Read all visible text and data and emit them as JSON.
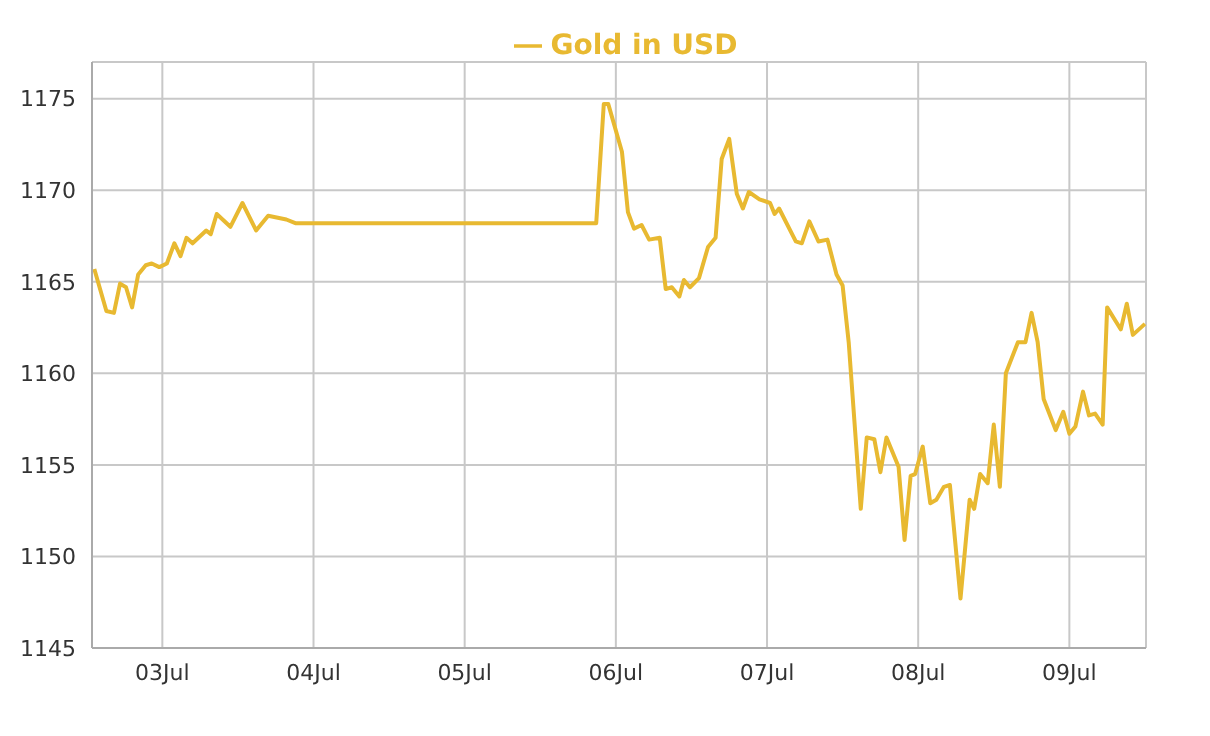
{
  "chart_data": {
    "type": "line",
    "legend": "top",
    "grid": true,
    "marker": "none",
    "line_style": "solid",
    "xlim": [
      "--07-02T12:50",
      "--07-09T12:10"
    ],
    "xticks": [
      {
        "value": "--07-03",
        "label": "03Jul"
      },
      {
        "value": "--07-04",
        "label": "04Jul"
      },
      {
        "value": "--07-05",
        "label": "05Jul"
      },
      {
        "value": "--07-06",
        "label": "06Jul"
      },
      {
        "value": "--07-07",
        "label": "07Jul"
      },
      {
        "value": "--07-08",
        "label": "08Jul"
      },
      {
        "value": "--07-09",
        "label": "09Jul"
      }
    ],
    "ylim": [
      1145,
      1177
    ],
    "yticks": [
      1145,
      1150,
      1155,
      1160,
      1165,
      1170,
      1175
    ],
    "x": [
      "--07-02T13:12",
      "--07-02T15:07",
      "--07-02T16:19",
      "--07-02T17:17",
      "--07-02T18:14",
      "--07-02T19:12",
      "--07-02T20:10",
      "--07-02T21:22",
      "--07-02T22:19",
      "--07-02T23:31",
      "--07-03T00:43",
      "--07-03T01:55",
      "--07-03T02:53",
      "--07-03T03:50",
      "--07-03T04:48",
      "--07-03T06:58",
      "--07-03T07:41",
      "--07-03T08:38",
      "--07-03T10:48",
      "--07-03T12:43",
      "--07-03T14:53",
      "--07-03T16:48",
      "--07-03T19:41",
      "--07-03T21:07",
      "--07-05T20:53",
      "--07-05T22:05",
      "--07-05T22:48",
      "--07-06T00:58",
      "--07-06T01:55",
      "--07-06T02:53",
      "--07-06T04:05",
      "--07-06T05:17",
      "--07-06T06:58",
      "--07-06T07:55",
      "--07-06T08:53",
      "--07-06T10:05",
      "--07-06T10:48",
      "--07-06T11:46",
      "--07-06T13:12",
      "--07-06T14:38",
      "--07-06T15:50",
      "--07-06T16:48",
      "--07-06T18:00",
      "--07-06T19:12",
      "--07-06T20:10",
      "--07-06T21:07",
      "--07-06T22:48",
      "--07-07T00:29",
      "--07-07T01:12",
      "--07-07T01:55",
      "--07-07T04:34",
      "--07-07T05:31",
      "--07-07T06:43",
      "--07-07T08:10",
      "--07-07T09:36",
      "--07-07T11:02",
      "--07-07T12:00",
      "--07-07T12:58",
      "--07-07T14:53",
      "--07-07T15:50",
      "--07-07T17:02",
      "--07-07T18:00",
      "--07-07T18:58",
      "--07-07T20:53",
      "--07-07T21:50",
      "--07-07T22:48",
      "--07-07T23:31",
      "--07-08T00:43",
      "--07-08T01:55",
      "--07-08T02:53",
      "--07-08T04:05",
      "--07-08T05:02",
      "--07-08T06:43",
      "--07-08T08:10",
      "--07-08T08:53",
      "--07-08T09:50",
      "--07-08T11:02",
      "--07-08T12:00",
      "--07-08T12:58",
      "--07-08T13:55",
      "--07-08T15:50",
      "--07-08T17:02",
      "--07-08T18:00",
      "--07-08T18:58",
      "--07-08T19:55",
      "--07-08T21:50",
      "--07-08T23:02",
      "--07-09T00:00",
      "--07-09T00:58",
      "--07-09T02:10",
      "--07-09T03:07",
      "--07-09T04:05",
      "--07-09T05:17",
      "--07-09T06:00",
      "--07-09T07:26",
      "--07-09T08:10",
      "--07-09T09:07",
      "--07-09T10:05",
      "--07-09T12:00"
    ],
    "series": [
      {
        "name": "Gold in USD",
        "color": "#e8b931",
        "values": [
          1165.7,
          1163.4,
          1163.3,
          1164.9,
          1164.7,
          1163.6,
          1165.4,
          1165.9,
          1166.0,
          1165.8,
          1166.0,
          1167.1,
          1166.4,
          1167.4,
          1167.1,
          1167.8,
          1167.6,
          1168.7,
          1168.0,
          1169.3,
          1167.8,
          1168.6,
          1168.4,
          1168.2,
          1168.2,
          1174.7,
          1174.7,
          1172.1,
          1168.8,
          1167.9,
          1168.1,
          1167.3,
          1167.4,
          1164.6,
          1164.7,
          1164.2,
          1165.1,
          1164.7,
          1165.2,
          1166.9,
          1167.4,
          1171.7,
          1172.8,
          1169.8,
          1169.0,
          1169.9,
          1169.5,
          1169.3,
          1168.7,
          1169.0,
          1167.2,
          1167.1,
          1168.3,
          1167.2,
          1167.3,
          1165.4,
          1164.8,
          1161.7,
          1152.6,
          1156.5,
          1156.4,
          1154.6,
          1156.5,
          1154.9,
          1150.9,
          1154.4,
          1154.5,
          1156.0,
          1152.9,
          1153.1,
          1153.8,
          1153.9,
          1147.7,
          1153.1,
          1152.6,
          1154.5,
          1154.0,
          1157.2,
          1153.8,
          1160.0,
          1161.7,
          1161.7,
          1163.3,
          1161.7,
          1158.6,
          1156.9,
          1157.9,
          1156.7,
          1157.1,
          1159.0,
          1157.7,
          1157.8,
          1157.2,
          1163.6,
          1162.8,
          1162.4,
          1163.8,
          1162.1,
          1162.7
        ]
      }
    ]
  }
}
